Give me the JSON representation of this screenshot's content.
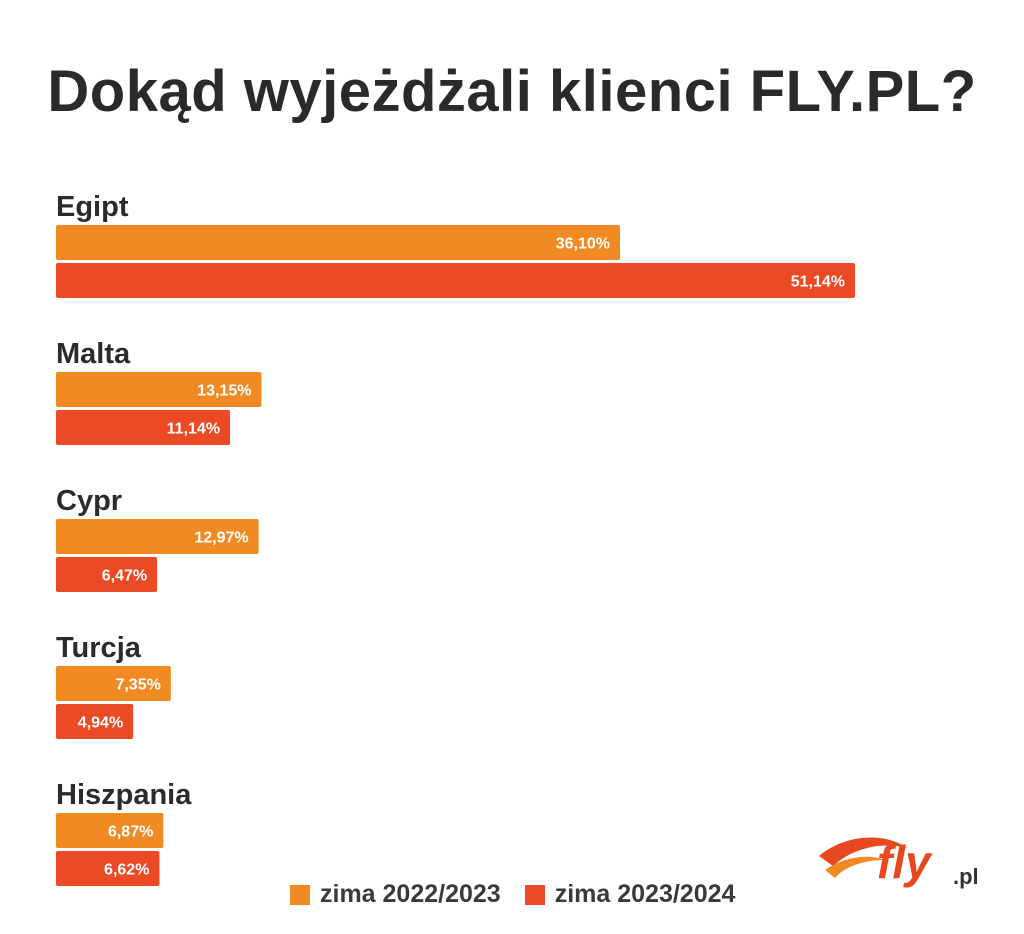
{
  "title": "Dokąd wyjeżdżali klienci FLY.PL?",
  "chart_data": {
    "type": "bar",
    "orientation": "horizontal",
    "categories": [
      "Egipt",
      "Malta",
      "Cypr",
      "Turcja",
      "Hiszpania"
    ],
    "series": [
      {
        "name": "zima 2022/2023",
        "color": "#f28a23",
        "values": [
          36.1,
          13.15,
          12.97,
          7.35,
          6.87
        ],
        "labels": [
          "36,10%",
          "13,15%",
          "12,97%",
          "7,35%",
          "6,87%"
        ]
      },
      {
        "name": "zima 2023/2024",
        "color": "#ec4a24",
        "values": [
          51.14,
          11.14,
          6.47,
          4.94,
          6.62
        ],
        "labels": [
          "51,14%",
          "11,14%",
          "6,47%",
          "4,94%",
          "6,62%"
        ]
      }
    ],
    "grid": false,
    "legend_position": "bottom"
  },
  "logo": {
    "text_main": "fly",
    "text_suffix": ".pl",
    "color": "#e8481f"
  }
}
